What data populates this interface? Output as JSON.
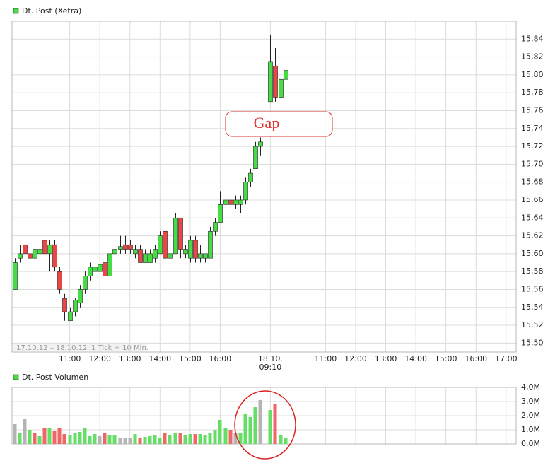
{
  "chart_data": [
    {
      "type": "candlestick",
      "title": "Dt. Post (Xetra)",
      "date_range": "17.10.12 – 18.10.12",
      "interval_note": "1 Tick = 10 Min.",
      "annotation": "Gap",
      "up_color": "#44dd44",
      "down_color": "#ee4444",
      "title_color": "#44dd44",
      "grid": true,
      "x": [
        0,
        1,
        2,
        3,
        4,
        5,
        6,
        7,
        8,
        9,
        10,
        11,
        12,
        13,
        14,
        15,
        16,
        17,
        18,
        19,
        20,
        21,
        22,
        23,
        24,
        25,
        26,
        27,
        28,
        29,
        30,
        31,
        32,
        33,
        34,
        35,
        36,
        37,
        38,
        39,
        40,
        41,
        42,
        43,
        44,
        45,
        46,
        47,
        48,
        49,
        51,
        52,
        53,
        54
      ],
      "open": [
        15.56,
        15.595,
        15.61,
        15.6,
        15.595,
        15.6,
        15.615,
        15.6,
        15.61,
        15.58,
        15.55,
        15.525,
        15.535,
        15.545,
        15.56,
        15.575,
        15.58,
        15.58,
        15.59,
        15.575,
        15.6,
        15.605,
        15.61,
        15.61,
        15.6,
        15.605,
        15.59,
        15.59,
        15.595,
        15.6,
        15.625,
        15.595,
        15.6,
        15.64,
        15.6,
        15.595,
        15.615,
        15.595,
        15.595,
        15.595,
        15.625,
        15.635,
        15.655,
        15.66,
        15.655,
        15.655,
        15.66,
        15.68,
        15.695,
        15.72,
        15.77,
        15.81,
        15.775,
        15.795
      ],
      "high": [
        15.595,
        15.61,
        15.62,
        15.62,
        15.615,
        15.62,
        15.62,
        15.615,
        15.615,
        15.585,
        15.555,
        15.54,
        15.55,
        15.565,
        15.58,
        15.59,
        15.59,
        15.595,
        15.595,
        15.605,
        15.62,
        15.62,
        15.62,
        15.615,
        15.61,
        15.61,
        15.605,
        15.605,
        15.61,
        15.625,
        15.625,
        15.605,
        15.645,
        15.64,
        15.61,
        15.62,
        15.62,
        15.61,
        15.6,
        15.63,
        15.64,
        15.67,
        15.67,
        15.665,
        15.665,
        15.665,
        15.685,
        15.695,
        15.725,
        15.73,
        15.845,
        15.83,
        15.8,
        15.81
      ],
      "low": [
        15.56,
        15.59,
        15.59,
        15.58,
        15.565,
        15.595,
        15.595,
        15.58,
        15.58,
        15.555,
        15.525,
        15.525,
        15.53,
        15.54,
        15.555,
        15.57,
        15.575,
        15.575,
        15.57,
        15.575,
        15.595,
        15.6,
        15.6,
        15.6,
        15.595,
        15.59,
        15.59,
        15.59,
        15.59,
        15.6,
        15.59,
        15.585,
        15.6,
        15.595,
        15.595,
        15.59,
        15.59,
        15.59,
        15.59,
        15.595,
        15.62,
        15.635,
        15.65,
        15.645,
        15.65,
        15.645,
        15.655,
        15.675,
        15.695,
        15.71,
        15.77,
        15.77,
        15.76,
        15.79
      ],
      "close": [
        15.59,
        15.6,
        15.6,
        15.595,
        15.605,
        15.605,
        15.6,
        15.61,
        15.585,
        15.56,
        15.535,
        15.535,
        15.548,
        15.56,
        15.575,
        15.585,
        15.585,
        15.588,
        15.575,
        15.6,
        15.605,
        15.608,
        15.605,
        15.605,
        15.605,
        15.59,
        15.6,
        15.6,
        15.605,
        15.62,
        15.595,
        15.6,
        15.64,
        15.605,
        15.605,
        15.615,
        15.595,
        15.6,
        15.6,
        15.625,
        15.635,
        15.655,
        15.66,
        15.655,
        15.66,
        15.66,
        15.68,
        15.69,
        15.72,
        15.725,
        15.815,
        15.775,
        15.795,
        15.805
      ],
      "xlim": [
        -0.5,
        100
      ],
      "ylim": [
        15.49,
        15.86
      ],
      "xticks": [
        {
          "value": 11,
          "label": "11:00"
        },
        {
          "value": 17,
          "label": "12:00"
        },
        {
          "value": 23,
          "label": "13:00"
        },
        {
          "value": 29,
          "label": "14:00"
        },
        {
          "value": 35,
          "label": "15:00"
        },
        {
          "value": 41,
          "label": "16:00"
        },
        {
          "value": 51,
          "label": "18.10.\n09:10"
        },
        {
          "value": 62,
          "label": "11:00"
        },
        {
          "value": 68,
          "label": "12:00"
        },
        {
          "value": 74,
          "label": "13:00"
        },
        {
          "value": 80,
          "label": "14:00"
        },
        {
          "value": 86,
          "label": "15:00"
        },
        {
          "value": 92,
          "label": "16:00"
        },
        {
          "value": 98,
          "label": "17:00"
        }
      ],
      "yticks": [
        {
          "value": 15.5,
          "label": "15,50"
        },
        {
          "value": 15.52,
          "label": "15,52"
        },
        {
          "value": 15.54,
          "label": "15,54"
        },
        {
          "value": 15.56,
          "label": "15,56"
        },
        {
          "value": 15.58,
          "label": "15,58"
        },
        {
          "value": 15.6,
          "label": "15,60"
        },
        {
          "value": 15.62,
          "label": "15,62"
        },
        {
          "value": 15.64,
          "label": "15,64"
        },
        {
          "value": 15.66,
          "label": "15,66"
        },
        {
          "value": 15.68,
          "label": "15,68"
        },
        {
          "value": 15.7,
          "label": "15,70"
        },
        {
          "value": 15.72,
          "label": "15,72"
        },
        {
          "value": 15.74,
          "label": "15,74"
        },
        {
          "value": 15.76,
          "label": "15,76"
        },
        {
          "value": 15.78,
          "label": "15,78"
        },
        {
          "value": 15.8,
          "label": "15,80"
        },
        {
          "value": 15.82,
          "label": "15,82"
        },
        {
          "value": 15.84,
          "label": "15,84"
        }
      ]
    },
    {
      "type": "bar",
      "title": "Dt. Post Volumen",
      "title_color": "#44dd44",
      "grid": true,
      "x": [
        0,
        1,
        2,
        3,
        4,
        5,
        6,
        7,
        8,
        9,
        10,
        11,
        12,
        13,
        14,
        15,
        16,
        17,
        18,
        19,
        20,
        21,
        22,
        23,
        24,
        25,
        26,
        27,
        28,
        29,
        30,
        31,
        32,
        33,
        34,
        35,
        36,
        37,
        38,
        39,
        40,
        41,
        42,
        43,
        44,
        45,
        46,
        47,
        48,
        49,
        51,
        52,
        53,
        54
      ],
      "values": [
        1400000,
        800000,
        1800000,
        1000000,
        800000,
        550000,
        1100000,
        1100000,
        950000,
        1100000,
        700000,
        600000,
        750000,
        850000,
        1100000,
        550000,
        700000,
        550000,
        800000,
        600000,
        650000,
        400000,
        400000,
        450000,
        700000,
        400000,
        500000,
        550000,
        600000,
        450000,
        800000,
        600000,
        800000,
        800000,
        600000,
        700000,
        700000,
        700000,
        600000,
        800000,
        1000000,
        1700000,
        1100000,
        1000000,
        750000,
        800000,
        2100000,
        1900000,
        2600000,
        3100000,
        2400000,
        2850000,
        600000,
        400000
      ],
      "colors": [
        "#b4b4b4",
        "#66dd66",
        "#b4b4b4",
        "#66dd66",
        "#ee6666",
        "#66dd66",
        "#ee6666",
        "#66dd66",
        "#ee6666",
        "#ee6666",
        "#ee6666",
        "#66dd66",
        "#66dd66",
        "#66dd66",
        "#66dd66",
        "#66dd66",
        "#66dd66",
        "#b4b4b4",
        "#ee6666",
        "#66dd66",
        "#66dd66",
        "#b4b4b4",
        "#b4b4b4",
        "#b4b4b4",
        "#66dd66",
        "#ee6666",
        "#66dd66",
        "#66dd66",
        "#66dd66",
        "#66dd66",
        "#ee6666",
        "#66dd66",
        "#66dd66",
        "#ee6666",
        "#66dd66",
        "#66dd66",
        "#ee6666",
        "#66dd66",
        "#66dd66",
        "#66dd66",
        "#66dd66",
        "#66dd66",
        "#66dd66",
        "#ee6666",
        "#b4b4b4",
        "#66dd66",
        "#66dd66",
        "#66dd66",
        "#66dd66",
        "#b4b4b4",
        "#66dd66",
        "#ee6666",
        "#66dd66",
        "#66dd66"
      ],
      "xlim": [
        -0.5,
        100
      ],
      "ylim": [
        0,
        4000000
      ],
      "yticks": [
        {
          "value": 0,
          "label": "0,0M"
        },
        {
          "value": 1000000,
          "label": "1,0M"
        },
        {
          "value": 2000000,
          "label": "2,0M"
        },
        {
          "value": 3000000,
          "label": "3,0M"
        },
        {
          "value": 4000000,
          "label": "4,0M"
        }
      ]
    }
  ]
}
